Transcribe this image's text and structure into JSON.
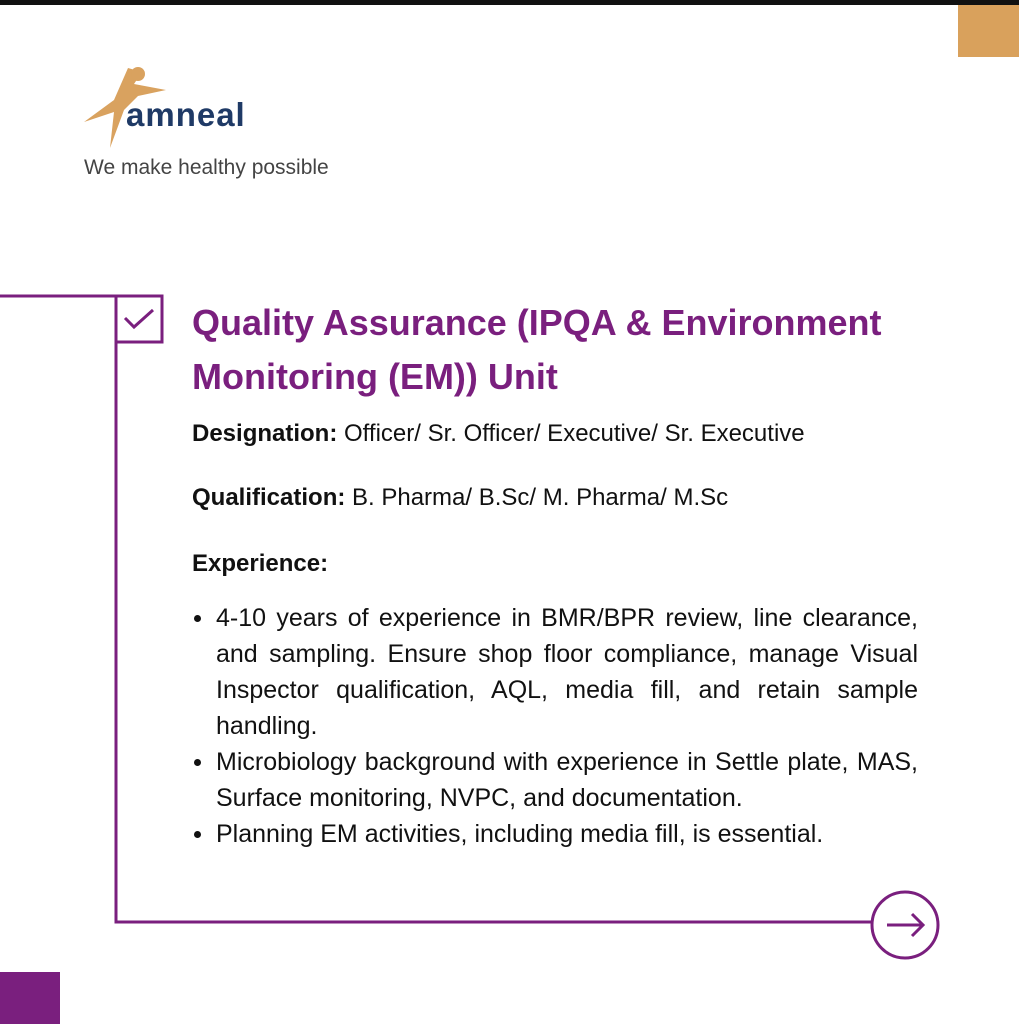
{
  "colors": {
    "accent": "#7a1f7e",
    "tan": "#d9a15c",
    "logo_blue": "#1f3a66",
    "logo_orange": "#d9a25f"
  },
  "brand": {
    "name": "amneal",
    "tagline": "We make healthy possible"
  },
  "icons": {
    "check": "checkmark-icon",
    "arrow": "arrow-right-icon"
  },
  "title": "Quality Assurance (IPQA & Environment Monitoring (EM)) Unit",
  "designation": {
    "label": "Designation:",
    "value": " Officer/ Sr. Officer/ Executive/ Sr. Executive"
  },
  "qualification": {
    "label": "Qualification:",
    "value": " B. Pharma/ B.Sc/ M. Pharma/ M.Sc"
  },
  "experience": {
    "label": "Experience:",
    "items": [
      "4-10 years of experience in BMR/BPR review, line clearance, and sampling. Ensure shop floor compliance, manage Visual Inspector qualification, AQL, media fill, and retain sample handling.",
      "Microbiology background with experience in Settle plate, MAS, Surface monitoring, NVPC, and documentation.",
      "Planning EM activities, including media fill, is essential."
    ]
  }
}
